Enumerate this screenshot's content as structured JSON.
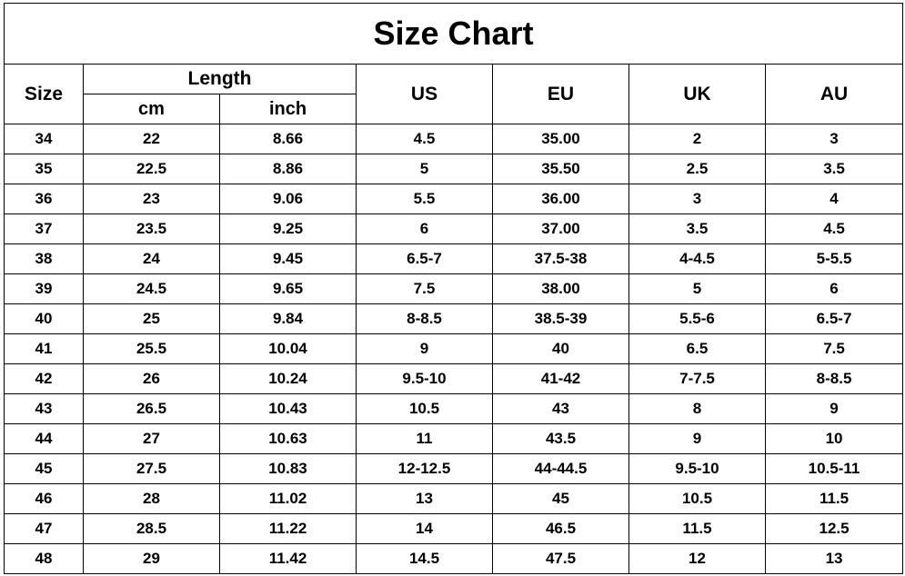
{
  "title": "Size Chart",
  "headers": {
    "size": "Size",
    "length": "Length",
    "cm": "cm",
    "inch": "inch",
    "us": "US",
    "eu": "EU",
    "uk": "UK",
    "au": "AU"
  },
  "rows": [
    [
      "34",
      "22",
      "8.66",
      "4.5",
      "35.00",
      "2",
      "3"
    ],
    [
      "35",
      "22.5",
      "8.86",
      "5",
      "35.50",
      "2.5",
      "3.5"
    ],
    [
      "36",
      "23",
      "9.06",
      "5.5",
      "36.00",
      "3",
      "4"
    ],
    [
      "37",
      "23.5",
      "9.25",
      "6",
      "37.00",
      "3.5",
      "4.5"
    ],
    [
      "38",
      "24",
      "9.45",
      "6.5-7",
      "37.5-38",
      "4-4.5",
      "5-5.5"
    ],
    [
      "39",
      "24.5",
      "9.65",
      "7.5",
      "38.00",
      "5",
      "6"
    ],
    [
      "40",
      "25",
      "9.84",
      "8-8.5",
      "38.5-39",
      "5.5-6",
      "6.5-7"
    ],
    [
      "41",
      "25.5",
      "10.04",
      "9",
      "40",
      "6.5",
      "7.5"
    ],
    [
      "42",
      "26",
      "10.24",
      "9.5-10",
      "41-42",
      "7-7.5",
      "8-8.5"
    ],
    [
      "43",
      "26.5",
      "10.43",
      "10.5",
      "43",
      "8",
      "9"
    ],
    [
      "44",
      "27",
      "10.63",
      "11",
      "43.5",
      "9",
      "10"
    ],
    [
      "45",
      "27.5",
      "10.83",
      "12-12.5",
      "44-44.5",
      "9.5-10",
      "10.5-11"
    ],
    [
      "46",
      "28",
      "11.02",
      "13",
      "45",
      "10.5",
      "11.5"
    ],
    [
      "47",
      "28.5",
      "11.22",
      "14",
      "46.5",
      "11.5",
      "12.5"
    ],
    [
      "48",
      "29",
      "11.42",
      "14.5",
      "47.5",
      "12",
      "13"
    ]
  ]
}
